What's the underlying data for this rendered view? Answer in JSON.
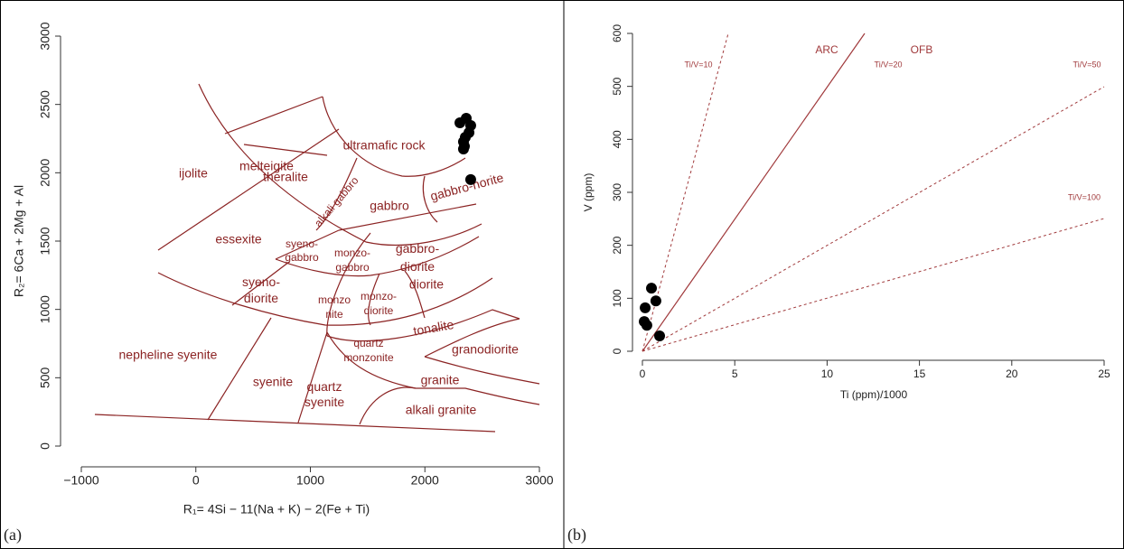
{
  "chart_data": [
    {
      "type": "scatter",
      "panel_label": "(a)",
      "x_label": "R₁= 4Si − 11(Na + K) − 2(Fe + Ti)",
      "y_label": "R₂= 6Ca + 2Mg + Al",
      "annotations": [
        "melteigite",
        "ultramafic rock",
        "ijolite",
        "theralite",
        "alkali gabbro",
        "gabbro",
        "gabbro-norite",
        "essexite",
        [
          "syeno-",
          "gabbro"
        ],
        [
          "monzo-",
          "gabbro"
        ],
        [
          "gabbro-",
          "diorite"
        ],
        [
          "syeno-",
          "diorite"
        ],
        [
          "monzo-",
          "diorite"
        ],
        [
          "monzo",
          "nite"
        ],
        "diorite",
        "tonalite",
        [
          "quartz",
          "monzonite"
        ],
        "granodiorite",
        "nepheline syenite",
        "syenite",
        "granite",
        [
          "quartz",
          "syenite"
        ],
        "alkali granite"
      ],
      "x": [
        2306,
        2361,
        2400,
        2385,
        2353,
        2337,
        2345,
        2337,
        2400
      ],
      "values": [
        2366,
        2399,
        2346,
        2294,
        2260,
        2227,
        2194,
        2174,
        1950
      ],
      "color": "#000000",
      "xlim": [
        -1000,
        3000
      ],
      "xticks": [
        {
          "value": -1000,
          "label": "−1000"
        },
        0,
        1000,
        2000,
        3000
      ],
      "ylim": [
        0,
        3000
      ],
      "yticks": [
        0,
        500,
        1000,
        1500,
        2000,
        2500,
        3000
      ]
    },
    {
      "type": "scatter",
      "panel_label": "(b)",
      "x_label": "Ti (ppm)/1000",
      "y_label": "V (ppm)",
      "annotations": [
        "ARC",
        "OFB",
        "Ti/V=10",
        "Ti/V=20",
        "Ti/V=50",
        "Ti/V=100"
      ],
      "x": [
        0.49,
        0.73,
        0.15,
        0.1,
        0.24,
        0.93
      ],
      "values": [
        119,
        95,
        82,
        56,
        49,
        29
      ],
      "color": "#000000",
      "xlim": [
        0,
        25
      ],
      "xticks": [
        0,
        5,
        10,
        15,
        20,
        25
      ],
      "ylim": [
        0,
        600
      ],
      "yticks": [
        0,
        100,
        200,
        300,
        400,
        500,
        600
      ]
    }
  ]
}
